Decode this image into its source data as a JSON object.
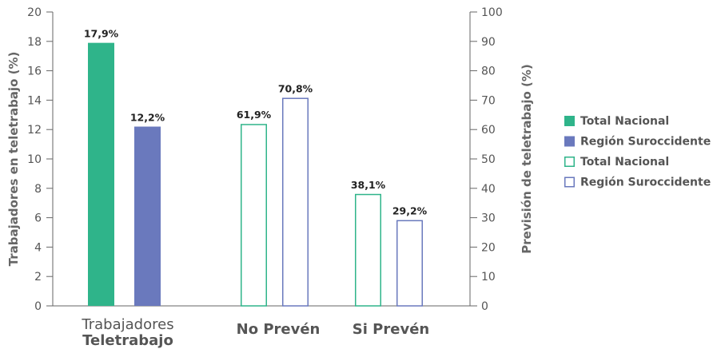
{
  "chart_data": {
    "type": "bar",
    "left_axis": {
      "label": "Trabajadores en teletrabajo (%)",
      "ylim": [
        0,
        20
      ],
      "ticks": [
        0,
        2,
        4,
        6,
        8,
        10,
        12,
        14,
        16,
        18,
        20
      ]
    },
    "right_axis": {
      "label": "Previsión de teletrabajo (%)",
      "ylim": [
        0,
        100
      ],
      "ticks": [
        0,
        10,
        20,
        30,
        40,
        50,
        60,
        70,
        80,
        90,
        100
      ]
    },
    "groups": [
      {
        "label_line1": "Trabajadores",
        "label_line2": "Teletrabajo",
        "axis": "left",
        "bars": [
          {
            "series": 0,
            "value": 17.9,
            "label": "17,9%"
          },
          {
            "series": 1,
            "value": 12.2,
            "label": "12,2%"
          }
        ]
      },
      {
        "label_line1": "No Prevén",
        "label_line2": "",
        "axis": "right",
        "bars": [
          {
            "series": 2,
            "value": 61.9,
            "label": "61,9%"
          },
          {
            "series": 3,
            "value": 70.8,
            "label": "70,8%"
          }
        ]
      },
      {
        "label_line1": "Si Prevén",
        "label_line2": "",
        "axis": "right",
        "bars": [
          {
            "series": 2,
            "value": 38.1,
            "label": "38,1%"
          },
          {
            "series": 3,
            "value": 29.2,
            "label": "29,2%"
          }
        ]
      }
    ],
    "series": [
      {
        "name": "Total Nacional",
        "style": "filled",
        "color": "#2fb48a"
      },
      {
        "name": "Región Suroccidente",
        "style": "filled",
        "color": "#6a79bd"
      },
      {
        "name": "Total Nacional",
        "style": "outline",
        "color": "#2fb48a"
      },
      {
        "name": "Región Suroccidente",
        "style": "outline",
        "color": "#6a79bd"
      }
    ],
    "legend_position": "right",
    "grid": false
  }
}
